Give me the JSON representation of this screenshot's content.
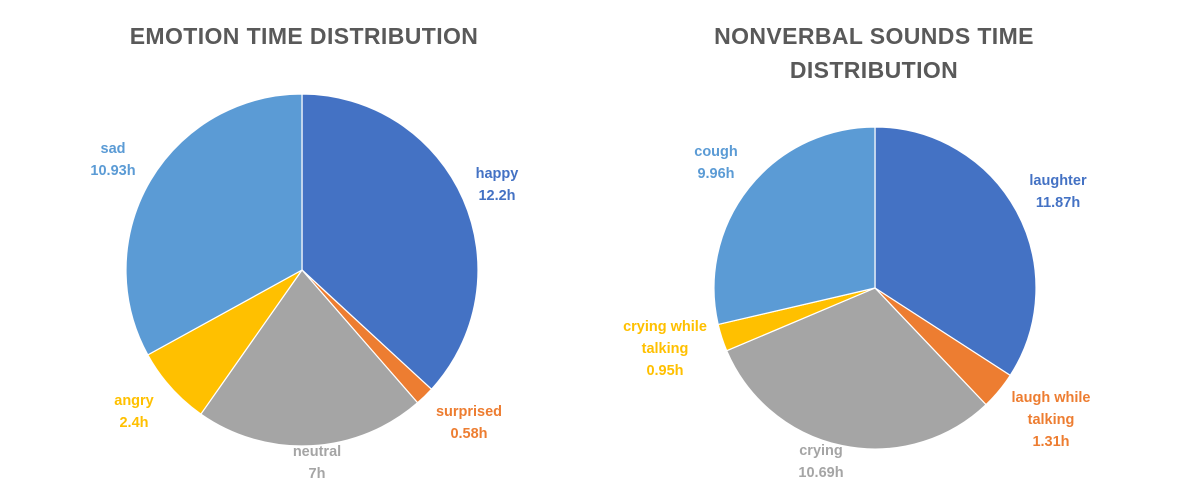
{
  "chart_data": [
    {
      "type": "pie",
      "title": "EMOTION TIME DISTRIBUTION",
      "slices": [
        {
          "label": "happy",
          "value": 12.2,
          "value_label": "12.2h",
          "color": "#4472C4"
        },
        {
          "label": "surprised",
          "value": 0.58,
          "value_label": "0.58h",
          "color": "#ED7D31"
        },
        {
          "label": "neutral",
          "value": 7,
          "value_label": "7h",
          "color": "#A5A5A5"
        },
        {
          "label": "angry",
          "value": 2.4,
          "value_label": "2.4h",
          "color": "#FFC000"
        },
        {
          "label": "sad",
          "value": 10.93,
          "value_label": "10.93h",
          "color": "#5B9BD5"
        }
      ],
      "start_angle": "12 o'clock",
      "direction": "clockwise",
      "legend": "none"
    },
    {
      "type": "pie",
      "title": "NONVERBAL SOUNDS TIME\nDISTRIBUTION",
      "slices": [
        {
          "label": "laughter",
          "value": 11.87,
          "value_label": "11.87h",
          "color": "#4472C4"
        },
        {
          "label": "laugh while\ntalking",
          "value": 1.31,
          "value_label": "1.31h",
          "color": "#ED7D31"
        },
        {
          "label": "crying",
          "value": 10.69,
          "value_label": "10.69h",
          "color": "#A5A5A5"
        },
        {
          "label": "crying while\ntalking",
          "value": 0.95,
          "value_label": "0.95h",
          "color": "#FFC000"
        },
        {
          "label": "cough",
          "value": 9.96,
          "value_label": "9.96h",
          "color": "#5B9BD5"
        }
      ],
      "start_angle": "12 o'clock",
      "direction": "clockwise",
      "legend": "none"
    }
  ]
}
